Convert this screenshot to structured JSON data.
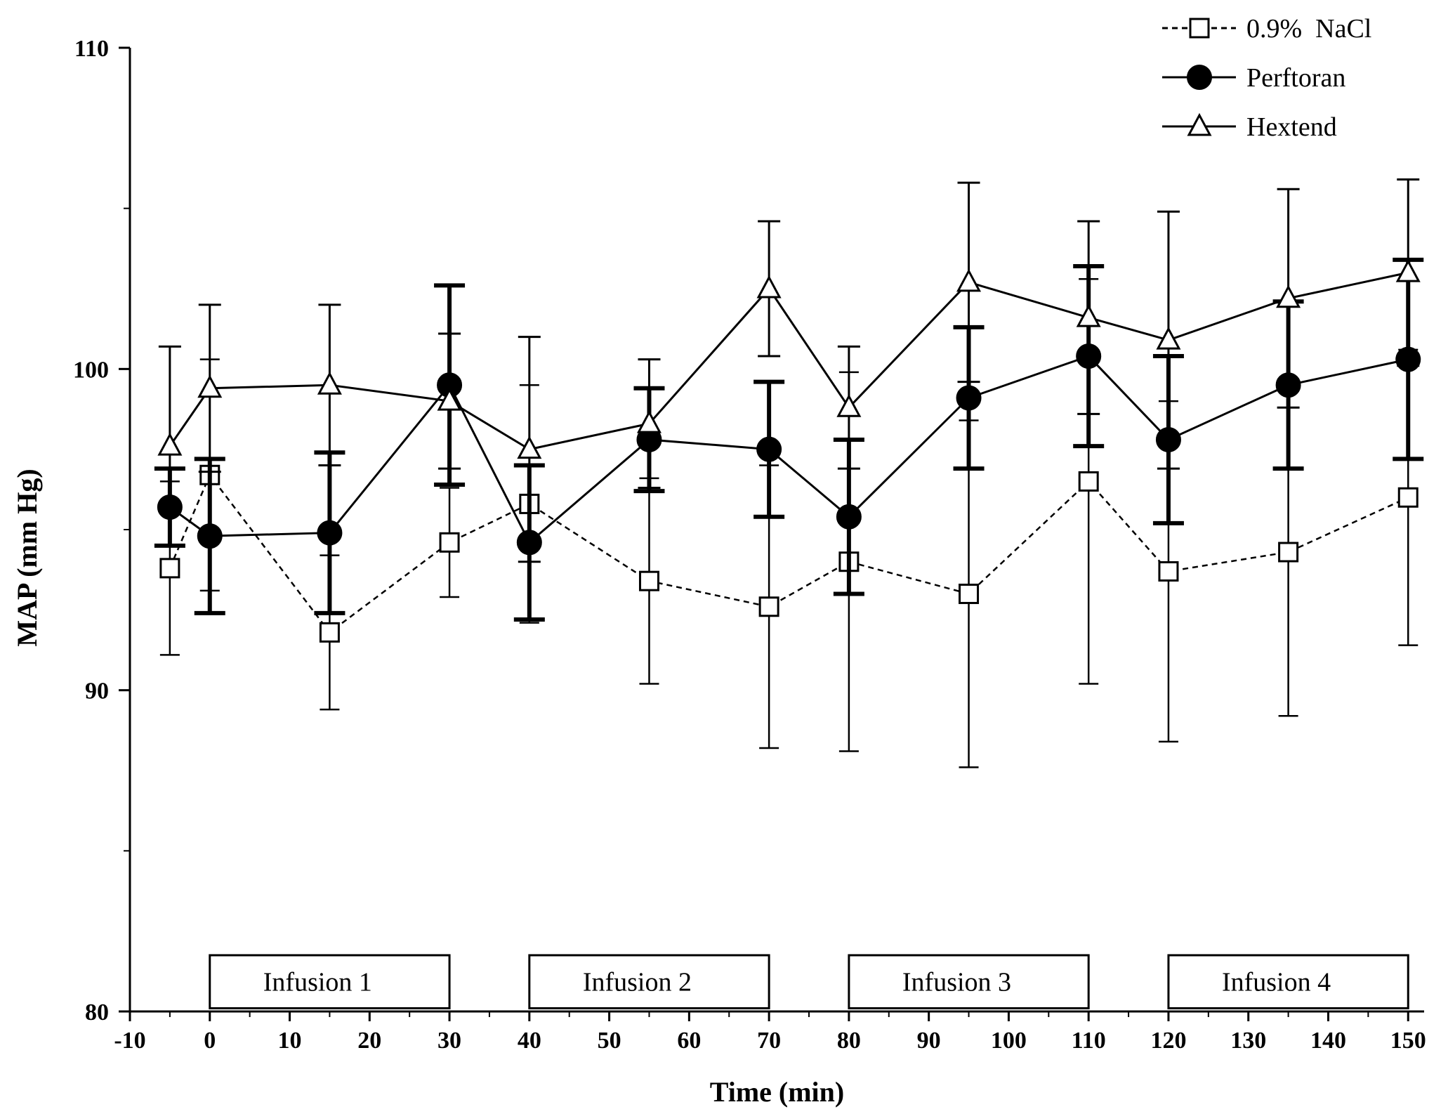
{
  "chart_data": {
    "type": "line",
    "title": "",
    "xlabel": "Time (min)",
    "ylabel": "MAP (mm Hg)",
    "xlim": [
      -10,
      152
    ],
    "ylim": [
      80,
      110
    ],
    "xticks": [
      -10,
      0,
      10,
      20,
      30,
      40,
      50,
      60,
      70,
      80,
      90,
      100,
      110,
      120,
      130,
      140,
      150
    ],
    "yticks": [
      80,
      90,
      100,
      110
    ],
    "y_minor_step": 5,
    "legend_position": "top-right",
    "series": [
      {
        "name": "0.9%  NaCl",
        "marker": "open-square",
        "line": "dashed",
        "x": [
          -5,
          0,
          15,
          30,
          40,
          55,
          70,
          80,
          95,
          110,
          120,
          135,
          150
        ],
        "y": [
          93.8,
          96.7,
          91.8,
          94.6,
          95.8,
          93.4,
          92.6,
          94.0,
          93.0,
          96.5,
          93.7,
          94.3,
          96.0
        ],
        "err": [
          2.7,
          3.6,
          2.4,
          1.7,
          3.7,
          3.2,
          4.4,
          5.9,
          5.4,
          6.3,
          5.3,
          5.1,
          4.6
        ]
      },
      {
        "name": "Perftoran",
        "marker": "filled-circle",
        "line": "solid",
        "x": [
          -5,
          0,
          15,
          30,
          40,
          55,
          70,
          80,
          95,
          110,
          120,
          135,
          150
        ],
        "y": [
          95.7,
          94.8,
          94.9,
          99.5,
          94.6,
          97.8,
          97.5,
          95.4,
          99.1,
          100.4,
          97.8,
          99.5,
          100.3
        ],
        "err": [
          1.2,
          2.4,
          2.5,
          3.1,
          2.4,
          1.6,
          2.1,
          2.4,
          2.2,
          2.8,
          2.6,
          2.6,
          3.1
        ]
      },
      {
        "name": "Hextend",
        "marker": "open-triangle",
        "line": "solid",
        "x": [
          -5,
          0,
          15,
          30,
          40,
          55,
          70,
          80,
          95,
          110,
          120,
          135,
          150
        ],
        "y": [
          97.6,
          99.4,
          99.5,
          99.0,
          97.5,
          98.3,
          102.5,
          98.8,
          102.7,
          101.6,
          100.9,
          102.2,
          103.0
        ],
        "err": [
          3.1,
          2.6,
          2.5,
          2.1,
          3.5,
          2.0,
          2.1,
          1.9,
          3.1,
          3.0,
          4.0,
          3.4,
          2.9
        ]
      }
    ],
    "annotations": [
      {
        "label": "Infusion 1",
        "x_start": 0,
        "x_end": 30
      },
      {
        "label": "Infusion 2",
        "x_start": 40,
        "x_end": 70
      },
      {
        "label": "Infusion 3",
        "x_start": 80,
        "x_end": 110
      },
      {
        "label": "Infusion 4",
        "x_start": 120,
        "x_end": 150
      }
    ]
  }
}
